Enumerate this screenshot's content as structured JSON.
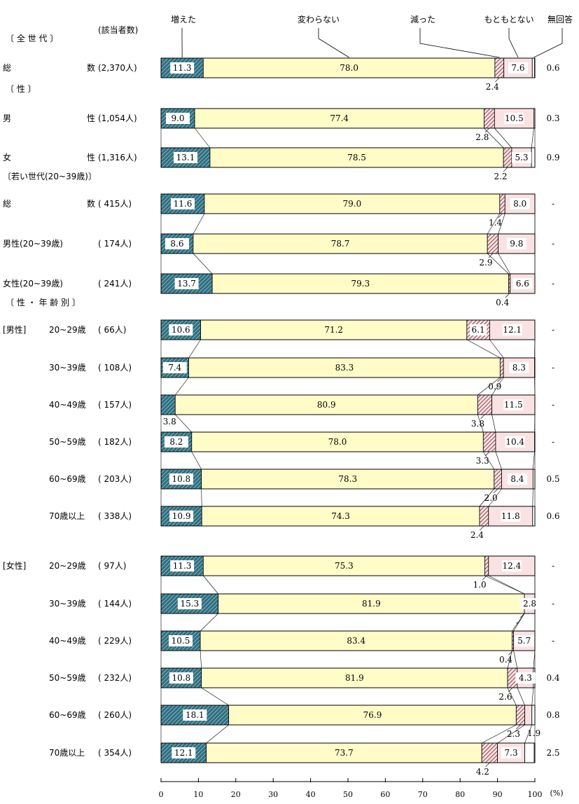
{
  "chart_data": {
    "type": "bar",
    "stacked": true,
    "orientation": "horizontal",
    "count_header": "(該当者数)",
    "percent_unit": "(%)",
    "xlim": [
      0,
      100
    ],
    "xticks": [
      "0",
      "10",
      "20",
      "30",
      "40",
      "50",
      "60",
      "70",
      "80",
      "90",
      "100"
    ],
    "series": [
      {
        "name": "増えた",
        "color": "#2f6f80",
        "pattern": "hatch"
      },
      {
        "name": "変わらない",
        "color": "#fffcc8",
        "pattern": "solid"
      },
      {
        "name": "減った",
        "color": "#7d3a46",
        "pattern": "hatch"
      },
      {
        "name": "もともとない",
        "color": "#fbe2e2",
        "pattern": "solid"
      },
      {
        "name": "無回答",
        "color": "#ffffff",
        "pattern": "solid"
      }
    ],
    "groups": [
      {
        "header": "〔 全 世 代 〕",
        "rows": [
          {
            "label_left": "総",
            "label_right": "数",
            "n": "(2,370人)",
            "values": [
              11.3,
              78.0,
              2.4,
              7.6,
              0.6
            ],
            "labels": [
              "11.3",
              "78.0",
              "2.4",
              "7.6",
              "0.6"
            ]
          }
        ]
      },
      {
        "header": "〔 性 〕",
        "rows": [
          {
            "label_left": "男",
            "label_right": "性",
            "n": "(1,054人)",
            "values": [
              9.0,
              77.4,
              2.8,
              10.5,
              0.3
            ],
            "labels": [
              "9.0",
              "77.4",
              "2.8",
              "10.5",
              "0.3"
            ]
          },
          {
            "label_left": "女",
            "label_right": "性",
            "n": "(1,316人)",
            "values": [
              13.1,
              78.5,
              2.2,
              5.3,
              0.9
            ],
            "labels": [
              "13.1",
              "78.5",
              "2.2",
              "5.3",
              "0.9"
            ]
          }
        ]
      },
      {
        "header": "〔若い世代(20~39歳)〕",
        "rows": [
          {
            "label_left": "総",
            "label_right": "数",
            "n": "( 415人)",
            "values": [
              11.6,
              79.0,
              1.4,
              8.0,
              0
            ],
            "labels": [
              "11.6",
              "79.0",
              "1.4",
              "8.0",
              "-"
            ]
          },
          {
            "label_left": "男性(20~39歳)",
            "label_right": "",
            "n": "( 174人)",
            "values": [
              8.6,
              78.7,
              2.9,
              9.8,
              0
            ],
            "labels": [
              "8.6",
              "78.7",
              "2.9",
              "9.8",
              "-"
            ]
          },
          {
            "label_left": "女性(20~39歳)",
            "label_right": "",
            "n": "( 241人)",
            "values": [
              13.7,
              79.3,
              0.4,
              6.6,
              0
            ],
            "labels": [
              "13.7",
              "79.3",
              "0.4",
              "6.6",
              "-"
            ]
          }
        ]
      },
      {
        "header": "〔 性 ・ 年 齢 別 〕",
        "rows": [
          {
            "label_left": "20~29歳",
            "label_right": "",
            "prefix": "[男性]",
            "n": "( 66人)",
            "values": [
              10.6,
              71.2,
              6.1,
              12.1,
              0
            ],
            "labels": [
              "10.6",
              "71.2",
              "6.1",
              "12.1",
              "-"
            ]
          },
          {
            "label_left": "30~39歳",
            "label_right": "",
            "n": "( 108人)",
            "values": [
              7.4,
              83.3,
              0.9,
              8.3,
              0
            ],
            "labels": [
              "7.4",
              "83.3",
              "0.9",
              "8.3",
              "-"
            ]
          },
          {
            "label_left": "40~49歳",
            "label_right": "",
            "n": "( 157人)",
            "values": [
              3.8,
              80.9,
              3.8,
              11.5,
              0
            ],
            "labels": [
              "3.8",
              "80.9",
              "3.8",
              "11.5",
              "-"
            ]
          },
          {
            "label_left": "50~59歳",
            "label_right": "",
            "n": "( 182人)",
            "values": [
              8.2,
              78.0,
              3.3,
              10.4,
              0
            ],
            "labels": [
              "8.2",
              "78.0",
              "3.3",
              "10.4",
              "-"
            ]
          },
          {
            "label_left": "60~69歳",
            "label_right": "",
            "n": "( 203人)",
            "values": [
              10.8,
              78.3,
              2.0,
              8.4,
              0.5
            ],
            "labels": [
              "10.8",
              "78.3",
              "2.0",
              "8.4",
              "0.5"
            ]
          },
          {
            "label_left": "70歳以上",
            "label_right": "",
            "n": "( 338人)",
            "values": [
              10.9,
              74.3,
              2.4,
              11.8,
              0.6
            ],
            "labels": [
              "10.9",
              "74.3",
              "2.4",
              "11.8",
              "0.6"
            ]
          },
          {
            "label_left": "20~29歳",
            "label_right": "",
            "prefix": "[女性]",
            "n": "( 97人)",
            "values": [
              11.3,
              75.3,
              1.0,
              12.4,
              0
            ],
            "labels": [
              "11.3",
              "75.3",
              "1.0",
              "12.4",
              "-"
            ]
          },
          {
            "label_left": "30~39歳",
            "label_right": "",
            "n": "( 144人)",
            "values": [
              15.3,
              81.9,
              0,
              2.8,
              0
            ],
            "labels": [
              "15.3",
              "81.9",
              "-",
              "2.8",
              "-"
            ]
          },
          {
            "label_left": "40~49歳",
            "label_right": "",
            "n": "( 229人)",
            "values": [
              10.5,
              83.4,
              0.4,
              5.7,
              0
            ],
            "labels": [
              "10.5",
              "83.4",
              "0.4",
              "5.7",
              "-"
            ]
          },
          {
            "label_left": "50~59歳",
            "label_right": "",
            "n": "( 232人)",
            "values": [
              10.8,
              81.9,
              2.6,
              4.3,
              0.4
            ],
            "labels": [
              "10.8",
              "81.9",
              "2.6",
              "4.3",
              "0.4"
            ]
          },
          {
            "label_left": "60~69歳",
            "label_right": "",
            "n": "( 260人)",
            "values": [
              18.1,
              76.9,
              2.3,
              1.9,
              0.8
            ],
            "labels": [
              "18.1",
              "76.9",
              "2.3",
              "1.9",
              "0.8"
            ]
          },
          {
            "label_left": "70歳以上",
            "label_right": "",
            "n": "( 354人)",
            "values": [
              12.1,
              73.7,
              4.2,
              7.3,
              2.5
            ],
            "labels": [
              "12.1",
              "73.7",
              "4.2",
              "7.3",
              "2.5"
            ]
          }
        ]
      }
    ]
  }
}
